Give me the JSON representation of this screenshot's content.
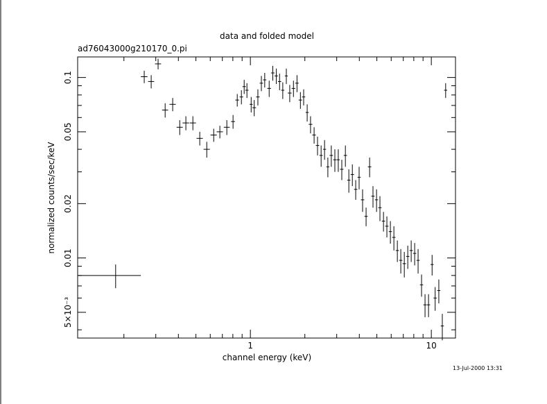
{
  "chart_data": {
    "type": "errorbar",
    "title": "data and folded model",
    "subtitle": "ad76043000g210170_0.pi",
    "x_label": "channel energy (keV)",
    "y_label": "normalized counts/sec/keV",
    "timestamp": "13-Jul-2000 13:31",
    "xlog": true,
    "ylog": true,
    "xlim": [
      0.111,
      13.6
    ],
    "ylim": [
      0.0036,
      0.13
    ],
    "xticks": [
      1,
      10
    ],
    "yticks": [
      0.1,
      0.05,
      0.02,
      0.01,
      {
        "value": 0.005,
        "label": "5×10⁻³"
      }
    ],
    "xminorticks": [
      0.2,
      0.3,
      0.4,
      0.5,
      0.6,
      0.7,
      0.8,
      0.9,
      2,
      3,
      4,
      5,
      6,
      7,
      8,
      9
    ],
    "yminorticks": [
      0.004,
      0.006,
      0.007,
      0.008,
      0.009,
      0.03,
      0.04,
      0.06,
      0.07,
      0.08,
      0.09
    ],
    "series": [
      {
        "color": "#000000",
        "x": [
          0.18,
          0.259,
          0.283,
          0.309,
          0.338,
          0.372,
          0.407,
          0.44,
          0.481,
          0.525,
          0.574,
          0.627,
          0.678,
          0.741,
          0.802,
          0.846,
          0.892,
          0.924,
          0.957,
          1.01,
          1.05,
          1.1,
          1.15,
          1.2,
          1.27,
          1.33,
          1.39,
          1.45,
          1.51,
          1.58,
          1.65,
          1.73,
          1.81,
          1.89,
          1.97,
          2.06,
          2.15,
          2.25,
          2.35,
          2.46,
          2.57,
          2.68,
          2.8,
          2.93,
          3.06,
          3.2,
          3.35,
          3.5,
          3.66,
          3.82,
          3.99,
          4.17,
          4.36,
          4.56,
          4.76,
          4.98,
          5.2,
          5.44,
          5.68,
          5.94,
          6.21,
          6.49,
          6.78,
          7.09,
          7.41,
          7.74,
          8.09,
          8.45,
          8.83,
          9.23,
          9.65,
          10.1,
          10.5,
          11.0,
          11.5,
          12.0
        ],
        "xerr": [
          0.068,
          0.011,
          0.011,
          0.012,
          0.013,
          0.015,
          0.016,
          0.018,
          0.019,
          0.021,
          0.023,
          0.025,
          0.027,
          0.028,
          0.02,
          0.02,
          0.02,
          0.02,
          0.02,
          0.02,
          0.025,
          0.025,
          0.025,
          0.025,
          0.03,
          0.03,
          0.03,
          0.03,
          0.03,
          0.03,
          0.04,
          0.04,
          0.04,
          0.04,
          0.04,
          0.04,
          0.05,
          0.05,
          0.05,
          0.05,
          0.05,
          0.05,
          0.06,
          0.06,
          0.06,
          0.07,
          0.07,
          0.07,
          0.08,
          0.08,
          0.08,
          0.09,
          0.09,
          0.1,
          0.1,
          0.1,
          0.11,
          0.11,
          0.12,
          0.12,
          0.13,
          0.13,
          0.14,
          0.15,
          0.15,
          0.16,
          0.17,
          0.17,
          0.18,
          0.19,
          0.2,
          0.2,
          0.21,
          0.22,
          0.23,
          0.24
        ],
        "values": [
          0.008,
          0.101,
          0.095,
          0.119,
          0.066,
          0.071,
          0.053,
          0.056,
          0.056,
          0.046,
          0.04,
          0.048,
          0.05,
          0.053,
          0.057,
          0.075,
          0.078,
          0.089,
          0.085,
          0.071,
          0.068,
          0.078,
          0.093,
          0.097,
          0.087,
          0.106,
          0.102,
          0.095,
          0.085,
          0.102,
          0.082,
          0.087,
          0.093,
          0.075,
          0.078,
          0.064,
          0.055,
          0.048,
          0.042,
          0.037,
          0.04,
          0.032,
          0.037,
          0.035,
          0.035,
          0.031,
          0.037,
          0.027,
          0.029,
          0.024,
          0.028,
          0.021,
          0.017,
          0.032,
          0.022,
          0.021,
          0.019,
          0.016,
          0.015,
          0.014,
          0.013,
          0.011,
          0.0097,
          0.0093,
          0.0102,
          0.011,
          0.0106,
          0.0097,
          0.0071,
          0.0055,
          0.0055,
          0.0092,
          0.006,
          0.0066,
          0.0042,
          0.085
        ],
        "yerr": [
          0.0012,
          0.008,
          0.008,
          0.008,
          0.006,
          0.006,
          0.005,
          0.005,
          0.005,
          0.004,
          0.004,
          0.004,
          0.004,
          0.005,
          0.005,
          0.006,
          0.007,
          0.008,
          0.008,
          0.007,
          0.007,
          0.008,
          0.009,
          0.009,
          0.009,
          0.01,
          0.01,
          0.01,
          0.009,
          0.01,
          0.009,
          0.009,
          0.01,
          0.008,
          0.008,
          0.007,
          0.006,
          0.005,
          0.005,
          0.005,
          0.005,
          0.004,
          0.005,
          0.005,
          0.005,
          0.004,
          0.005,
          0.004,
          0.004,
          0.003,
          0.004,
          0.003,
          0.002,
          0.004,
          0.003,
          0.003,
          0.003,
          0.002,
          0.002,
          0.002,
          0.002,
          0.0015,
          0.0015,
          0.0015,
          0.0015,
          0.0015,
          0.0015,
          0.0015,
          0.001,
          0.0008,
          0.0008,
          0.0012,
          0.0009,
          0.001,
          0.0007,
          0.008
        ]
      }
    ]
  }
}
